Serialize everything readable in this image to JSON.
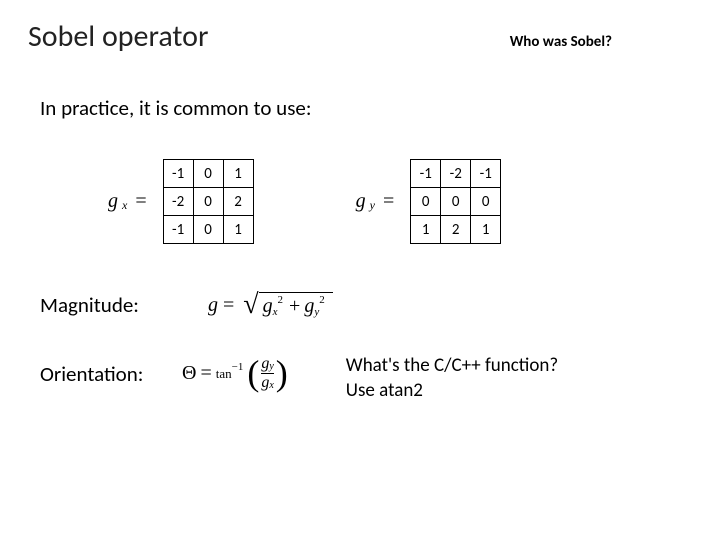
{
  "title": "Sobel operator",
  "who_text": "Who was Sobel?",
  "subtitle": "In practice, it is common to use:",
  "gx": {
    "symbol_main": "g",
    "symbol_sub": "x",
    "equals": "=",
    "kernel": {
      "rows": [
        {
          "c0": "-1",
          "c1": "0",
          "c2": "1"
        },
        {
          "c0": "-2",
          "c1": "0",
          "c2": "2"
        },
        {
          "c0": "-1",
          "c1": "0",
          "c2": "1"
        }
      ]
    }
  },
  "gy": {
    "symbol_main": "g",
    "symbol_sub": "y",
    "equals": "=",
    "kernel": {
      "rows": [
        {
          "c0": "-1",
          "c1": "-2",
          "c2": "-1"
        },
        {
          "c0": "0",
          "c1": "0",
          "c2": "0"
        },
        {
          "c0": "1",
          "c1": "2",
          "c2": "1"
        }
      ]
    }
  },
  "magnitude": {
    "label": "Magnitude:",
    "g": "g",
    "equals": "=",
    "gx_base": "g",
    "gx_sub": "x",
    "gx_sup": "2",
    "plus": "+",
    "gy_base": "g",
    "gy_sub": "y",
    "gy_sup": "2"
  },
  "orientation": {
    "label": "Orientation:",
    "theta": "Θ",
    "equals": "=",
    "fn": "tan",
    "fn_sup": "−1",
    "num_base": "g",
    "num_sub": "y",
    "den_base": "g",
    "den_sub": "x"
  },
  "side_note": {
    "line1": "What's the C/C++ function?",
    "line2": "Use atan2"
  }
}
